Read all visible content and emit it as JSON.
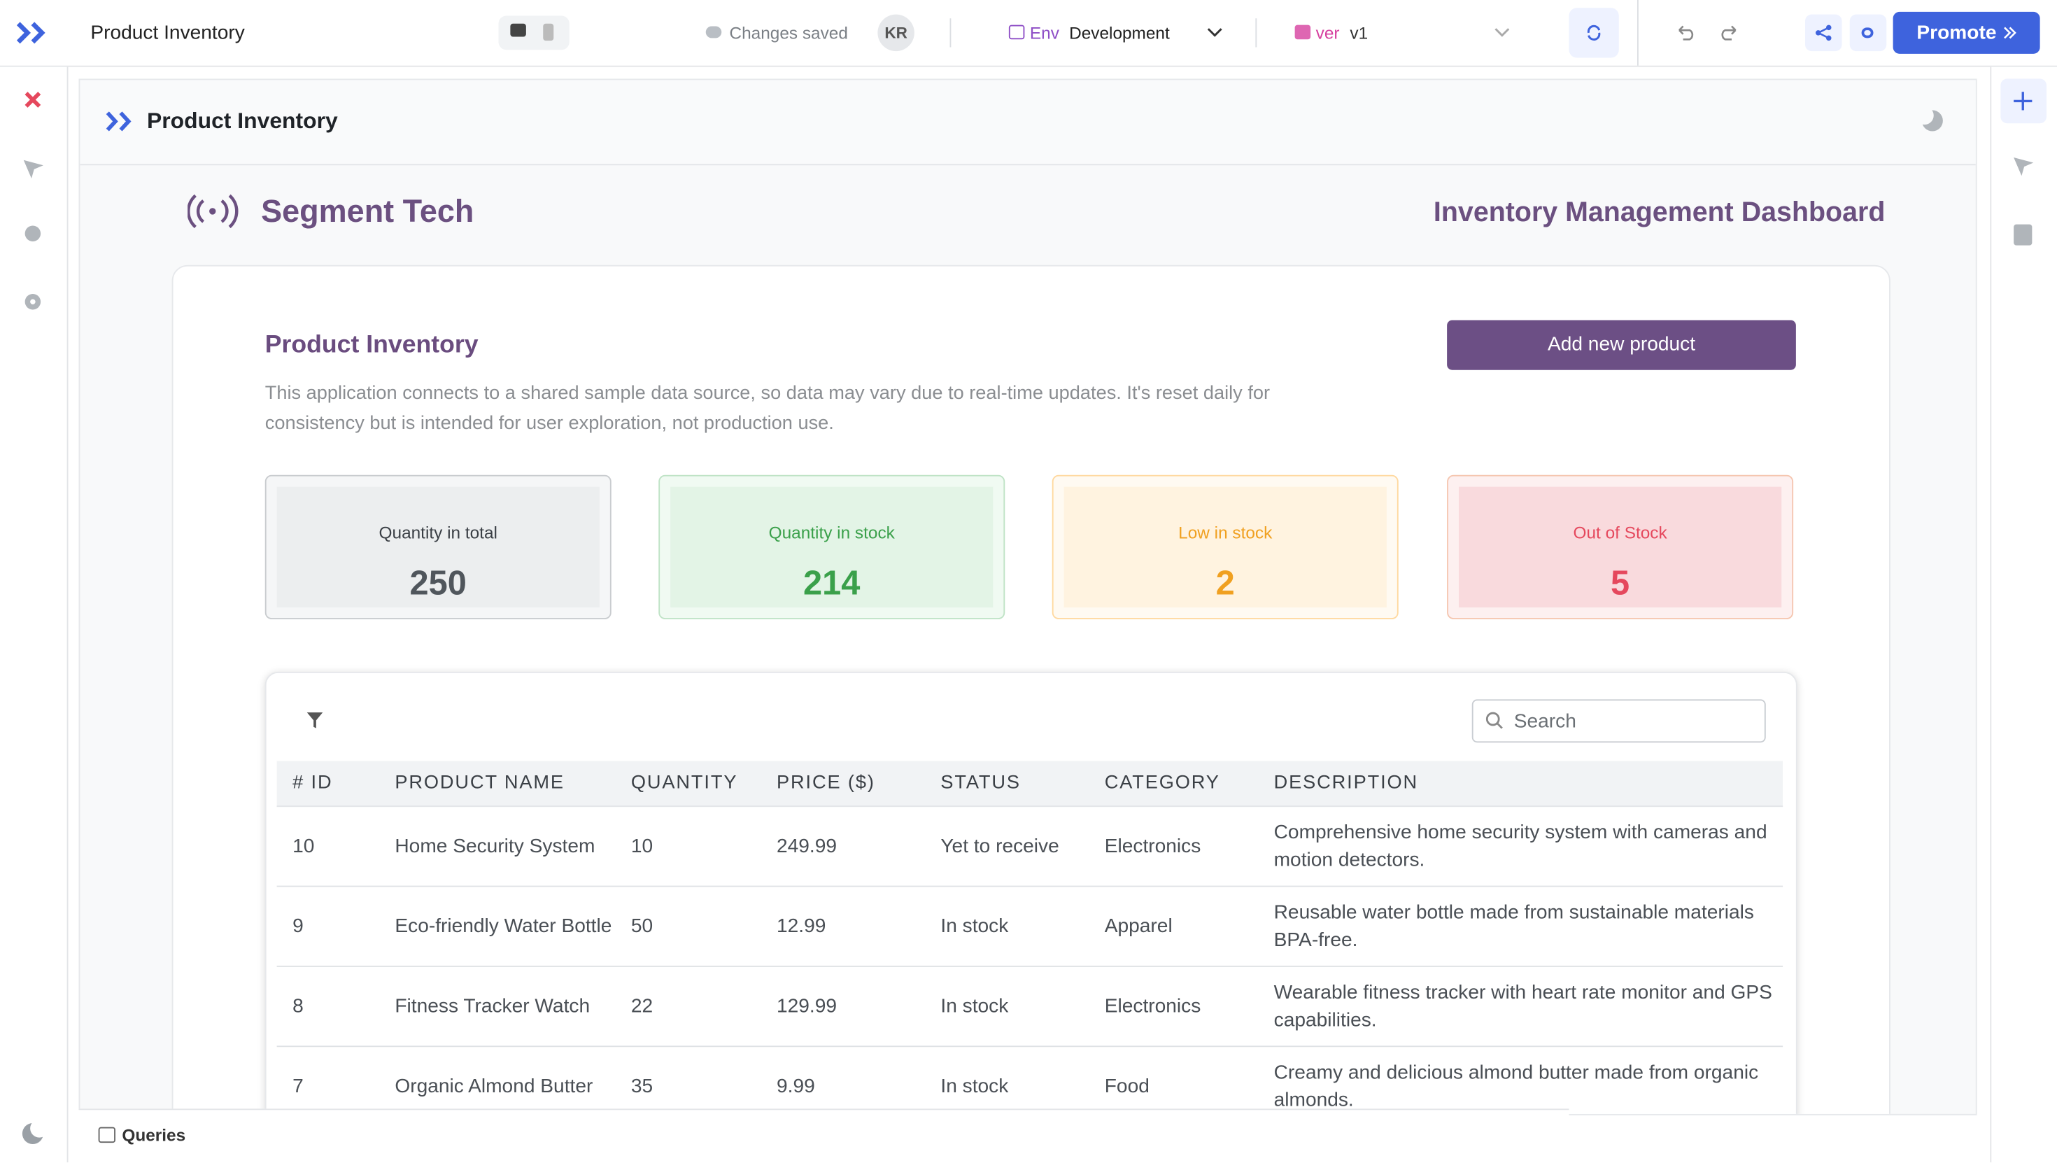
{
  "topbar": {
    "app_name": "Product Inventory",
    "save_status": "Changes saved",
    "avatar": "KR",
    "env_label": "Env",
    "env_value": "Development",
    "version_label": "ver",
    "version_value": "v1",
    "promote": "Promote"
  },
  "canvas": {
    "header_title": "Product Inventory"
  },
  "dashboard": {
    "brand": "Segment Tech",
    "title": "Inventory Management Dashboard",
    "section_title": "Product Inventory",
    "add_button": "Add new product",
    "description": "This application connects to a shared sample data source, so data may vary due to real-time updates. It's reset daily for consistency but is intended for user exploration, not production use.",
    "stats": [
      {
        "label": "Quantity in total",
        "value": "250"
      },
      {
        "label": "Quantity in stock",
        "value": "214"
      },
      {
        "label": "Low in stock",
        "value": "2"
      },
      {
        "label": "Out of Stock",
        "value": "5"
      }
    ]
  },
  "table": {
    "search_placeholder": "Search",
    "columns": [
      "# ID",
      "PRODUCT NAME",
      "QUANTITY",
      "PRICE ($)",
      "STATUS",
      "CATEGORY",
      "DESCRIPTION"
    ],
    "rows": [
      [
        "10",
        "Home Security System",
        "10",
        "249.99",
        "Yet to receive",
        "Electronics",
        "Comprehensive home security system with cameras and motion detectors."
      ],
      [
        "9",
        "Eco-friendly Water Bottle",
        "50",
        "12.99",
        "In stock",
        "Apparel",
        "Reusable water bottle made from sustainable materials BPA-free."
      ],
      [
        "8",
        "Fitness Tracker Watch",
        "22",
        "129.99",
        "In stock",
        "Electronics",
        "Wearable fitness tracker with heart rate monitor and GPS capabilities."
      ],
      [
        "7",
        "Organic Almond Butter",
        "35",
        "9.99",
        "In stock",
        "Food",
        "Creamy and delicious almond butter made from organic almonds."
      ]
    ]
  },
  "bottom_panel": {
    "queries": "Queries"
  }
}
